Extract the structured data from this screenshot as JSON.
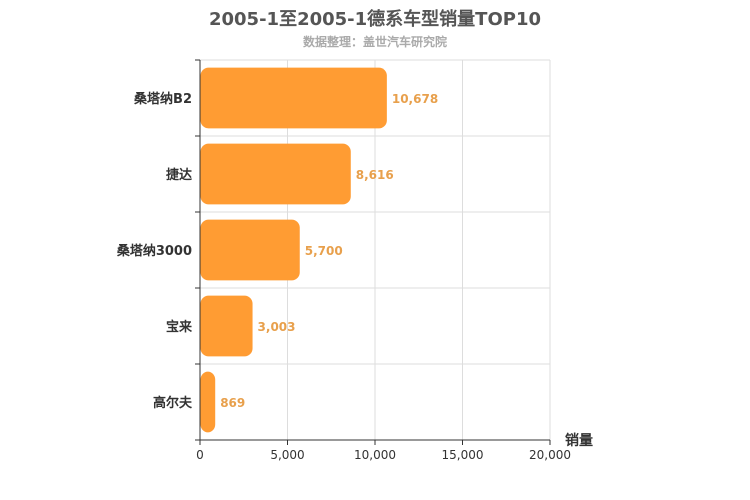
{
  "chart_data": {
    "type": "bar",
    "orientation": "horizontal",
    "title": "2005-1至2005-1德系车型销量TOP10",
    "subtitle": "数据整理：盖世汽车研究院",
    "categories": [
      "桑塔纳B2",
      "捷达",
      "桑塔纳3000",
      "宝来",
      "高尔夫"
    ],
    "values": [
      10678,
      8616,
      5700,
      3003,
      869
    ],
    "value_labels": [
      "10,678",
      "8,616",
      "5,700",
      "3,003",
      "869"
    ],
    "xlabel": "销量",
    "ylabel": "",
    "xlim": [
      0,
      20000
    ],
    "x_ticks": [
      0,
      5000,
      10000,
      15000,
      20000
    ],
    "x_tick_labels": [
      "0",
      "5,000",
      "10,000",
      "15,000",
      "20,000"
    ],
    "grid": true,
    "bar_color": "#ff9c33",
    "label_color": "#e8a04c"
  }
}
